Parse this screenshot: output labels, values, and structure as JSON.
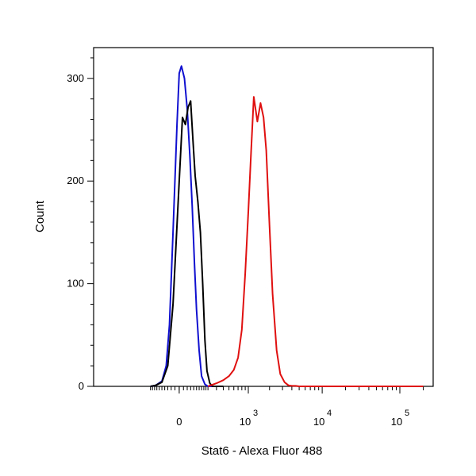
{
  "chart_data": {
    "type": "line",
    "title": "",
    "xlabel": "Stat6 - Alexa Fluor 488",
    "ylabel": "Count",
    "x_scale": "biexponential",
    "ylim": [
      0,
      330
    ],
    "grid": false,
    "y_ticks": [
      {
        "value": 0,
        "label": "0"
      },
      {
        "value": 100,
        "label": "100"
      },
      {
        "value": 200,
        "label": "200"
      },
      {
        "value": 300,
        "label": "300"
      }
    ],
    "x_ticks": [
      {
        "value": 0,
        "base": "0",
        "exp": ""
      },
      {
        "value": 1000,
        "base": "10",
        "exp": "3"
      },
      {
        "value": 10000,
        "base": "10",
        "exp": "4"
      },
      {
        "value": 100000,
        "base": "10",
        "exp": "5"
      }
    ],
    "series": [
      {
        "color": "#1010d0",
        "x": [
          -200,
          -150,
          -100,
          -70,
          -50,
          -30,
          -10,
          0,
          10,
          25,
          40,
          55,
          70,
          85,
          100,
          120,
          140,
          170,
          200,
          260,
          350
        ],
        "y": [
          0,
          1,
          5,
          20,
          60,
          150,
          255,
          305,
          312,
          300,
          270,
          225,
          175,
          120,
          75,
          35,
          10,
          2,
          0,
          0,
          0
        ]
      },
      {
        "color": "#000000",
        "x": [
          -200,
          -150,
          -100,
          -60,
          -30,
          0,
          15,
          30,
          45,
          60,
          75,
          90,
          110,
          130,
          150,
          170,
          190,
          220,
          250,
          300,
          400
        ],
        "y": [
          0,
          1,
          4,
          20,
          80,
          200,
          262,
          255,
          272,
          278,
          240,
          205,
          180,
          150,
          100,
          45,
          15,
          3,
          0,
          0,
          0
        ]
      },
      {
        "color": "#e01010",
        "x": [
          200,
          300,
          400,
          500,
          600,
          700,
          800,
          900,
          1000,
          1100,
          1200,
          1350,
          1500,
          1650,
          1800,
          2000,
          2200,
          2500,
          2800,
          3200,
          3600,
          4000,
          4500,
          5000,
          6000,
          8000,
          100000,
          200000
        ],
        "y": [
          0,
          3,
          6,
          10,
          16,
          28,
          55,
          110,
          170,
          230,
          282,
          258,
          276,
          262,
          230,
          155,
          90,
          35,
          12,
          4,
          1,
          0.5,
          0.5,
          0,
          0,
          0,
          0,
          0
        ]
      }
    ]
  }
}
